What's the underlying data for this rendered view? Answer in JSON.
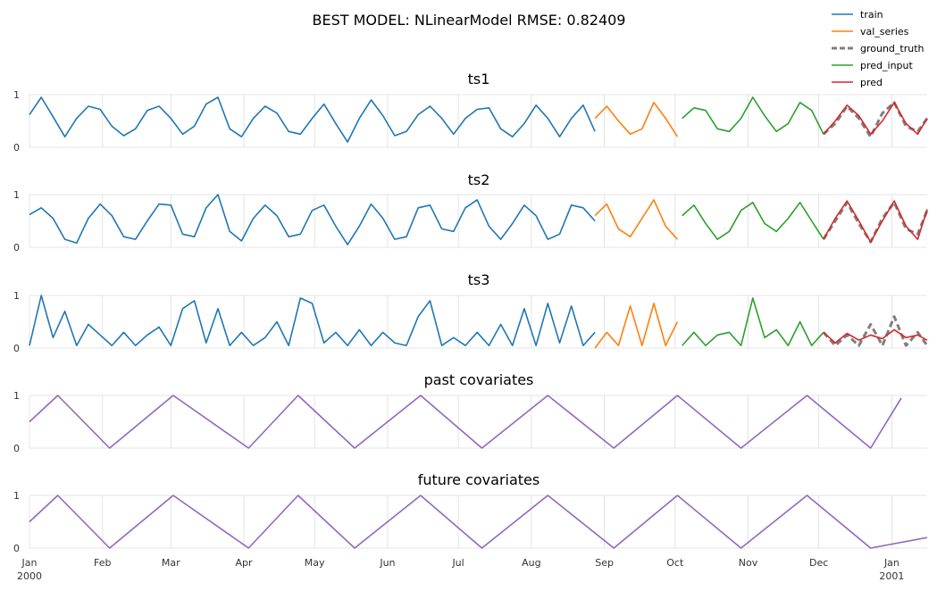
{
  "title": "BEST MODEL: NLinearModel  RMSE: 0.82409",
  "colors": {
    "train": "#1f77b4",
    "val_series": "#ff7f0e",
    "ground_truth": "#7f7f7f",
    "pred_input": "#2ca02c",
    "pred": "#d62728",
    "covariates": "#9467bd",
    "grid": "#dddddd"
  },
  "legend": {
    "placement": "top-right",
    "items": [
      {
        "label": "train",
        "style": "solid",
        "color": "#1f77b4"
      },
      {
        "label": "val_series",
        "style": "solid",
        "color": "#ff7f0e"
      },
      {
        "label": "ground_truth",
        "style": "dashed",
        "color": "#7f7f7f"
      },
      {
        "label": "pred_input",
        "style": "solid",
        "color": "#2ca02c"
      },
      {
        "label": "pred",
        "style": "solid",
        "color": "#d62728"
      }
    ]
  },
  "x_axis": {
    "range": [
      "2000-01-01",
      "2001-01-16"
    ],
    "ticks": [
      {
        "date": "2000-01-01",
        "label": "Jan",
        "sublabel": "2000"
      },
      {
        "date": "2000-02-01",
        "label": "Feb",
        "sublabel": ""
      },
      {
        "date": "2000-03-01",
        "label": "Mar",
        "sublabel": ""
      },
      {
        "date": "2000-04-01",
        "label": "Apr",
        "sublabel": ""
      },
      {
        "date": "2000-05-01",
        "label": "May",
        "sublabel": ""
      },
      {
        "date": "2000-06-01",
        "label": "Jun",
        "sublabel": ""
      },
      {
        "date": "2000-07-01",
        "label": "Jul",
        "sublabel": ""
      },
      {
        "date": "2000-08-01",
        "label": "Aug",
        "sublabel": ""
      },
      {
        "date": "2000-09-01",
        "label": "Sep",
        "sublabel": ""
      },
      {
        "date": "2000-10-01",
        "label": "Oct",
        "sublabel": ""
      },
      {
        "date": "2000-11-01",
        "label": "Nov",
        "sublabel": ""
      },
      {
        "date": "2000-12-01",
        "label": "Dec",
        "sublabel": ""
      },
      {
        "date": "2001-01-01",
        "label": "Jan",
        "sublabel": "2001"
      }
    ]
  },
  "chart_data": [
    {
      "type": "line",
      "title": "ts1",
      "ylim": [
        0,
        1
      ],
      "yticks": [
        "0",
        "1"
      ],
      "grid": true,
      "series": [
        {
          "name": "train",
          "style": "solid",
          "x": [
            "2000-01-01",
            "2000-01-06",
            "2000-01-11",
            "2000-01-16",
            "2000-01-21",
            "2000-01-26",
            "2000-01-31",
            "2000-02-05",
            "2000-02-10",
            "2000-02-15",
            "2000-02-20",
            "2000-02-25",
            "2000-03-01",
            "2000-03-06",
            "2000-03-11",
            "2000-03-16",
            "2000-03-21",
            "2000-03-26",
            "2000-03-31",
            "2000-04-05",
            "2000-04-10",
            "2000-04-15",
            "2000-04-20",
            "2000-04-25",
            "2000-04-30",
            "2000-05-05",
            "2000-05-10",
            "2000-05-15",
            "2000-05-20",
            "2000-05-25",
            "2000-05-30",
            "2000-06-04",
            "2000-06-09",
            "2000-06-14",
            "2000-06-19",
            "2000-06-24",
            "2000-06-29",
            "2000-07-04",
            "2000-07-09",
            "2000-07-14",
            "2000-07-19",
            "2000-07-24",
            "2000-07-29",
            "2000-08-03",
            "2000-08-08",
            "2000-08-13",
            "2000-08-18",
            "2000-08-23",
            "2000-08-28"
          ],
          "values": [
            0.62,
            0.95,
            0.58,
            0.2,
            0.55,
            0.78,
            0.72,
            0.4,
            0.22,
            0.35,
            0.7,
            0.78,
            0.55,
            0.25,
            0.4,
            0.82,
            0.95,
            0.35,
            0.2,
            0.55,
            0.78,
            0.65,
            0.3,
            0.25,
            0.55,
            0.82,
            0.45,
            0.1,
            0.55,
            0.9,
            0.6,
            0.22,
            0.3,
            0.62,
            0.78,
            0.55,
            0.25,
            0.55,
            0.72,
            0.75,
            0.35,
            0.2,
            0.45,
            0.8,
            0.55,
            0.2,
            0.55,
            0.8,
            0.3
          ],
          "color": "#1f77b4"
        },
        {
          "name": "val_series",
          "style": "solid",
          "x": [
            "2000-08-28",
            "2000-09-02",
            "2000-09-07",
            "2000-09-12",
            "2000-09-17",
            "2000-09-22",
            "2000-09-27",
            "2000-10-02"
          ],
          "values": [
            0.55,
            0.78,
            0.5,
            0.25,
            0.35,
            0.85,
            0.55,
            0.2
          ],
          "color": "#ff7f0e"
        },
        {
          "name": "pred_input",
          "style": "solid",
          "x": [
            "2000-10-04",
            "2000-10-09",
            "2000-10-14",
            "2000-10-19",
            "2000-10-24",
            "2000-10-29",
            "2000-11-03",
            "2000-11-08",
            "2000-11-13",
            "2000-11-18",
            "2000-11-23",
            "2000-11-28",
            "2000-12-03"
          ],
          "values": [
            0.55,
            0.75,
            0.7,
            0.35,
            0.3,
            0.55,
            0.95,
            0.6,
            0.3,
            0.45,
            0.85,
            0.7,
            0.25
          ],
          "color": "#2ca02c"
        },
        {
          "name": "ground_truth",
          "style": "dashed",
          "x": [
            "2000-12-03",
            "2000-12-08",
            "2000-12-13",
            "2000-12-18",
            "2000-12-23",
            "2000-12-28",
            "2001-01-02",
            "2001-01-07",
            "2001-01-12",
            "2001-01-16"
          ],
          "values": [
            0.25,
            0.45,
            0.78,
            0.55,
            0.2,
            0.65,
            0.85,
            0.4,
            0.3,
            0.55
          ],
          "color": "#7f7f7f"
        },
        {
          "name": "pred",
          "style": "solid",
          "x": [
            "2000-12-03",
            "2000-12-08",
            "2000-12-13",
            "2000-12-18",
            "2000-12-23",
            "2000-12-28",
            "2001-01-02",
            "2001-01-07",
            "2001-01-12",
            "2001-01-16"
          ],
          "values": [
            0.25,
            0.5,
            0.8,
            0.6,
            0.25,
            0.5,
            0.85,
            0.45,
            0.25,
            0.55
          ],
          "color": "#d62728"
        }
      ]
    },
    {
      "type": "line",
      "title": "ts2",
      "ylim": [
        0,
        1
      ],
      "yticks": [
        "0",
        "1"
      ],
      "grid": true,
      "series": [
        {
          "name": "train",
          "style": "solid",
          "x": [
            "2000-01-01",
            "2000-01-06",
            "2000-01-11",
            "2000-01-16",
            "2000-01-21",
            "2000-01-26",
            "2000-01-31",
            "2000-02-05",
            "2000-02-10",
            "2000-02-15",
            "2000-02-20",
            "2000-02-25",
            "2000-03-01",
            "2000-03-06",
            "2000-03-11",
            "2000-03-16",
            "2000-03-21",
            "2000-03-26",
            "2000-03-31",
            "2000-04-05",
            "2000-04-10",
            "2000-04-15",
            "2000-04-20",
            "2000-04-25",
            "2000-04-30",
            "2000-05-05",
            "2000-05-10",
            "2000-05-15",
            "2000-05-20",
            "2000-05-25",
            "2000-05-30",
            "2000-06-04",
            "2000-06-09",
            "2000-06-14",
            "2000-06-19",
            "2000-06-24",
            "2000-06-29",
            "2000-07-04",
            "2000-07-09",
            "2000-07-14",
            "2000-07-19",
            "2000-07-24",
            "2000-07-29",
            "2000-08-03",
            "2000-08-08",
            "2000-08-13",
            "2000-08-18",
            "2000-08-23",
            "2000-08-28"
          ],
          "values": [
            0.62,
            0.75,
            0.55,
            0.15,
            0.08,
            0.55,
            0.82,
            0.6,
            0.2,
            0.15,
            0.5,
            0.82,
            0.8,
            0.25,
            0.2,
            0.75,
            1.0,
            0.3,
            0.12,
            0.55,
            0.8,
            0.6,
            0.2,
            0.25,
            0.7,
            0.8,
            0.4,
            0.05,
            0.4,
            0.82,
            0.55,
            0.15,
            0.2,
            0.75,
            0.8,
            0.35,
            0.3,
            0.75,
            0.9,
            0.4,
            0.15,
            0.45,
            0.8,
            0.6,
            0.15,
            0.25,
            0.8,
            0.75,
            0.5
          ],
          "color": "#1f77b4"
        },
        {
          "name": "val_series",
          "style": "solid",
          "x": [
            "2000-08-28",
            "2000-09-02",
            "2000-09-07",
            "2000-09-12",
            "2000-09-17",
            "2000-09-22",
            "2000-09-27",
            "2000-10-02"
          ],
          "values": [
            0.6,
            0.82,
            0.35,
            0.2,
            0.55,
            0.9,
            0.4,
            0.15
          ],
          "color": "#ff7f0e"
        },
        {
          "name": "pred_input",
          "style": "solid",
          "x": [
            "2000-10-04",
            "2000-10-09",
            "2000-10-14",
            "2000-10-19",
            "2000-10-24",
            "2000-10-29",
            "2000-11-03",
            "2000-11-08",
            "2000-11-13",
            "2000-11-18",
            "2000-11-23",
            "2000-11-28",
            "2000-12-03"
          ],
          "values": [
            0.6,
            0.8,
            0.45,
            0.15,
            0.3,
            0.7,
            0.85,
            0.45,
            0.3,
            0.55,
            0.85,
            0.5,
            0.15
          ],
          "color": "#2ca02c"
        },
        {
          "name": "ground_truth",
          "style": "dashed",
          "x": [
            "2000-12-03",
            "2000-12-08",
            "2000-12-13",
            "2000-12-18",
            "2000-12-23",
            "2000-12-28",
            "2001-01-02",
            "2001-01-07",
            "2001-01-12",
            "2001-01-16"
          ],
          "values": [
            0.15,
            0.5,
            0.85,
            0.45,
            0.1,
            0.55,
            0.85,
            0.35,
            0.25,
            0.7
          ],
          "color": "#7f7f7f"
        },
        {
          "name": "pred",
          "style": "solid",
          "x": [
            "2000-12-03",
            "2000-12-08",
            "2000-12-13",
            "2000-12-18",
            "2000-12-23",
            "2000-12-28",
            "2001-01-02",
            "2001-01-07",
            "2001-01-12",
            "2001-01-16"
          ],
          "values": [
            0.15,
            0.55,
            0.88,
            0.5,
            0.1,
            0.5,
            0.88,
            0.4,
            0.15,
            0.72
          ],
          "color": "#d62728"
        }
      ]
    },
    {
      "type": "line",
      "title": "ts3",
      "ylim": [
        0,
        1
      ],
      "yticks": [
        "0",
        "1"
      ],
      "grid": true,
      "series": [
        {
          "name": "train",
          "style": "solid",
          "x": [
            "2000-01-01",
            "2000-01-06",
            "2000-01-11",
            "2000-01-16",
            "2000-01-21",
            "2000-01-26",
            "2000-01-31",
            "2000-02-05",
            "2000-02-10",
            "2000-02-15",
            "2000-02-20",
            "2000-02-25",
            "2000-03-01",
            "2000-03-06",
            "2000-03-11",
            "2000-03-16",
            "2000-03-21",
            "2000-03-26",
            "2000-03-31",
            "2000-04-05",
            "2000-04-10",
            "2000-04-15",
            "2000-04-20",
            "2000-04-25",
            "2000-04-30",
            "2000-05-05",
            "2000-05-10",
            "2000-05-15",
            "2000-05-20",
            "2000-05-25",
            "2000-05-30",
            "2000-06-04",
            "2000-06-09",
            "2000-06-14",
            "2000-06-19",
            "2000-06-24",
            "2000-06-29",
            "2000-07-04",
            "2000-07-09",
            "2000-07-14",
            "2000-07-19",
            "2000-07-24",
            "2000-07-29",
            "2000-08-03",
            "2000-08-08",
            "2000-08-13",
            "2000-08-18",
            "2000-08-23",
            "2000-08-28"
          ],
          "values": [
            0.05,
            1.0,
            0.2,
            0.7,
            0.05,
            0.45,
            0.25,
            0.05,
            0.3,
            0.05,
            0.25,
            0.4,
            0.05,
            0.75,
            0.9,
            0.1,
            0.75,
            0.05,
            0.3,
            0.05,
            0.2,
            0.5,
            0.05,
            0.95,
            0.85,
            0.1,
            0.3,
            0.05,
            0.35,
            0.05,
            0.3,
            0.1,
            0.05,
            0.6,
            0.9,
            0.05,
            0.2,
            0.05,
            0.3,
            0.05,
            0.45,
            0.05,
            0.75,
            0.05,
            0.85,
            0.1,
            0.8,
            0.05,
            0.3
          ],
          "color": "#1f77b4"
        },
        {
          "name": "val_series",
          "style": "solid",
          "x": [
            "2000-08-28",
            "2000-09-02",
            "2000-09-07",
            "2000-09-12",
            "2000-09-17",
            "2000-09-22",
            "2000-09-27",
            "2000-10-02"
          ],
          "values": [
            0.0,
            0.3,
            0.05,
            0.8,
            0.05,
            0.85,
            0.05,
            0.5
          ],
          "color": "#ff7f0e"
        },
        {
          "name": "pred_input",
          "style": "solid",
          "x": [
            "2000-10-04",
            "2000-10-09",
            "2000-10-14",
            "2000-10-19",
            "2000-10-24",
            "2000-10-29",
            "2000-11-03",
            "2000-11-08",
            "2000-11-13",
            "2000-11-18",
            "2000-11-23",
            "2000-11-28",
            "2000-12-03"
          ],
          "values": [
            0.05,
            0.3,
            0.05,
            0.25,
            0.3,
            0.05,
            0.95,
            0.2,
            0.35,
            0.05,
            0.5,
            0.05,
            0.3
          ],
          "color": "#2ca02c"
        },
        {
          "name": "ground_truth",
          "style": "dashed",
          "x": [
            "2000-12-03",
            "2000-12-08",
            "2000-12-13",
            "2000-12-18",
            "2000-12-23",
            "2000-12-28",
            "2001-01-02",
            "2001-01-07",
            "2001-01-12",
            "2001-01-16"
          ],
          "values": [
            0.3,
            0.05,
            0.25,
            0.05,
            0.45,
            0.05,
            0.6,
            0.05,
            0.3,
            0.05
          ],
          "color": "#7f7f7f"
        },
        {
          "name": "pred",
          "style": "solid",
          "x": [
            "2000-12-03",
            "2000-12-08",
            "2000-12-13",
            "2000-12-18",
            "2000-12-23",
            "2000-12-28",
            "2001-01-02",
            "2001-01-07",
            "2001-01-12",
            "2001-01-16"
          ],
          "values": [
            0.3,
            0.1,
            0.28,
            0.15,
            0.25,
            0.18,
            0.35,
            0.2,
            0.25,
            0.15
          ],
          "color": "#d62728"
        }
      ]
    },
    {
      "type": "line",
      "title": "past covariates",
      "ylim": [
        0,
        1
      ],
      "yticks": [
        "0",
        "1"
      ],
      "grid": true,
      "series": [
        {
          "style": "solid",
          "x": [
            "2000-01-01",
            "2000-01-13",
            "2000-02-04",
            "2000-03-02",
            "2000-04-03",
            "2000-04-24",
            "2000-05-18",
            "2000-06-15",
            "2000-07-11",
            "2000-08-08",
            "2000-09-05",
            "2000-10-02",
            "2000-10-29",
            "2000-11-26",
            "2000-12-23",
            "2001-01-05"
          ],
          "values": [
            0.5,
            1.0,
            0.0,
            1.0,
            0.0,
            1.0,
            0.0,
            1.0,
            0.0,
            1.0,
            0.0,
            1.0,
            0.0,
            1.0,
            0.0,
            0.95
          ],
          "color": "#9467bd"
        }
      ]
    },
    {
      "type": "line",
      "title": "future covariates",
      "ylim": [
        0,
        1
      ],
      "yticks": [
        "0",
        "1"
      ],
      "grid": true,
      "series": [
        {
          "style": "solid",
          "x": [
            "2000-01-01",
            "2000-01-13",
            "2000-02-04",
            "2000-03-02",
            "2000-04-03",
            "2000-04-24",
            "2000-05-18",
            "2000-06-15",
            "2000-07-11",
            "2000-08-08",
            "2000-09-05",
            "2000-10-02",
            "2000-10-29",
            "2000-11-26",
            "2000-12-23",
            "2001-01-16"
          ],
          "values": [
            0.5,
            1.0,
            0.0,
            1.0,
            0.0,
            1.0,
            0.0,
            1.0,
            0.0,
            1.0,
            0.0,
            1.0,
            0.0,
            1.0,
            0.0,
            0.2
          ],
          "color": "#9467bd"
        }
      ]
    }
  ]
}
